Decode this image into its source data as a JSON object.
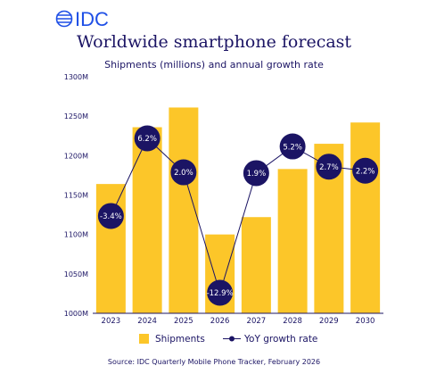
{
  "brand": {
    "logo_text": "IDC",
    "logo_color": "#1e4fe6"
  },
  "colors": {
    "bar": "#fcc629",
    "line": "#1b1464",
    "text": "#1b1464",
    "label_text": "#ffffff"
  },
  "chart_data": {
    "type": "bar",
    "title": "Worldwide smartphone forecast",
    "subtitle": "Shipments (millions) and annual growth rate",
    "categories": [
      "2023",
      "2024",
      "2025",
      "2026",
      "2027",
      "2028",
      "2029",
      "2030"
    ],
    "series": [
      {
        "name": "Shipments",
        "type": "bar",
        "values": [
          1164,
          1236,
          1261,
          1100,
          1122,
          1183,
          1215,
          1242
        ]
      },
      {
        "name": "YoY growth rate",
        "type": "line",
        "values": [
          -3.4,
          6.2,
          2.0,
          -12.9,
          1.9,
          5.2,
          2.7,
          2.2
        ],
        "labels": [
          "-3.4%",
          "6.2%",
          "2.0%",
          "-12.9%",
          "1.9%",
          "5.2%",
          "2.7%",
          "2.2%"
        ]
      }
    ],
    "ylim": [
      1000,
      1300
    ],
    "yticks": [
      "1000M",
      "1050M",
      "1100M",
      "1150M",
      "1200M",
      "1250M",
      "1300M"
    ],
    "grid": false,
    "legend": "bottom"
  },
  "footer": {
    "source": "Source:  IDC Quarterly Mobile Phone Tracker, February 2026"
  }
}
